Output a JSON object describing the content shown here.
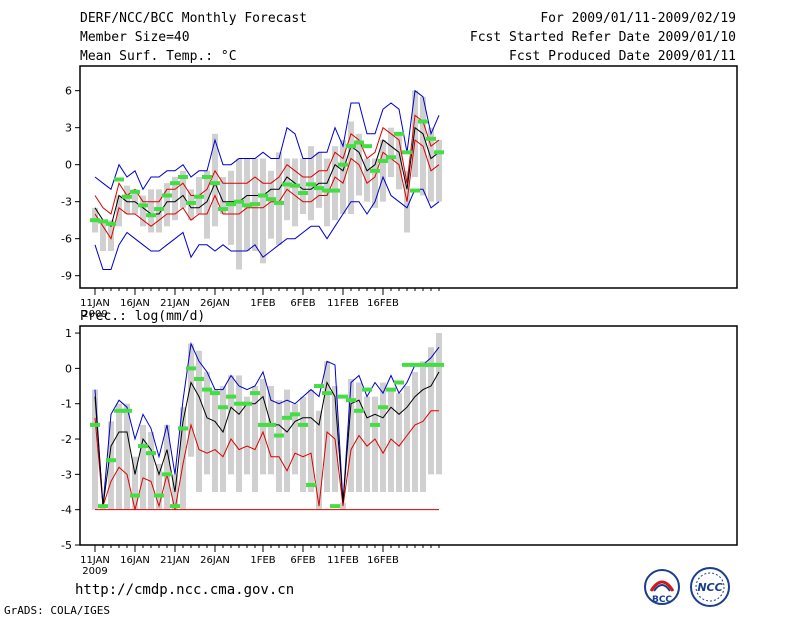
{
  "header": {
    "left": [
      "DERF/NCC/BCC Monthly Forecast",
      "Member Size=40",
      "Mean Surf. Temp.: °C"
    ],
    "right": [
      "For 2009/01/11-2009/02/19",
      "Fcst Started Refer Date 2009/01/10",
      "Fcst Produced Date 2009/01/11"
    ]
  },
  "footer": {
    "url": "http://cmdp.ncc.cma.gov.cn",
    "grads": "GrADS: COLA/IGES",
    "logo_bcc": "BCC",
    "logo_ncc": "NCC"
  },
  "colors": {
    "bar": "#d0d0d0",
    "mean": "#000000",
    "spread": "#dd0000",
    "envelope": "#0000cc",
    "observed": "#44dd44"
  },
  "chart_data": [
    {
      "type": "line",
      "title": "Mean Surf. Temp.: °C",
      "ylim": [
        -10,
        8
      ],
      "yticks": [
        6,
        3,
        0,
        -3,
        -6,
        -9
      ],
      "xticks": [
        {
          "day": 1,
          "label": "11JAN"
        },
        {
          "day": 6,
          "label": "16JAN"
        },
        {
          "day": 11,
          "label": "21JAN"
        },
        {
          "day": 16,
          "label": "26JAN"
        },
        {
          "day": 22,
          "label": "1FEB"
        },
        {
          "day": 27,
          "label": "6FEB"
        },
        {
          "day": 32,
          "label": "11FEB"
        },
        {
          "day": 37,
          "label": "16FEB"
        }
      ],
      "year_label": "2009",
      "series": [
        {
          "name": "bar_top",
          "values": [
            -3.5,
            -4.5,
            -4.5,
            -2.5,
            -1.7,
            -2.0,
            -2.5,
            -2.0,
            -2.0,
            -1.5,
            -1.0,
            -0.5,
            -2.0,
            -1.0,
            -0.5,
            2.5,
            -1.0,
            -0.5,
            0.5,
            0.5,
            0.5,
            0.5,
            -0.5,
            1.0,
            0.5,
            0.5,
            0.5,
            1.5,
            1.0,
            0.5,
            1.5,
            2.0,
            3.5,
            2.5,
            0.5,
            0.5,
            2.0,
            3.0,
            2.5,
            -0.5,
            6.0,
            5.5,
            3.0,
            2.0
          ]
        },
        {
          "name": "bar_bottom",
          "values": [
            -5.5,
            -7.0,
            -7.0,
            -5.0,
            -4.0,
            -4.0,
            -5.0,
            -5.5,
            -5.5,
            -5.0,
            -4.5,
            -3.5,
            -4.5,
            -4.0,
            -6.0,
            -5.0,
            -4.0,
            -6.5,
            -8.5,
            -7.0,
            -7.0,
            -8.0,
            -6.0,
            -6.5,
            -4.5,
            -5.0,
            -4.0,
            -4.5,
            -3.5,
            -5.0,
            -4.5,
            -4.0,
            -4.0,
            -2.5,
            -3.0,
            -3.5,
            -3.0,
            -1.0,
            -2.0,
            -5.5,
            -1.0,
            -2.5,
            -3.0,
            -3.0
          ]
        },
        {
          "name": "envelope_max",
          "values": [
            -1.0,
            -1.5,
            -2.0,
            0.0,
            -1.0,
            -0.5,
            -2.0,
            -1.0,
            -1.0,
            -0.5,
            -0.5,
            0.0,
            -1.0,
            -0.5,
            -0.5,
            2.0,
            0.0,
            0.0,
            0.5,
            0.5,
            0.5,
            1.0,
            0.5,
            0.5,
            3.0,
            2.5,
            0.5,
            0.5,
            1.0,
            1.0,
            3.0,
            1.5,
            5.0,
            5.0,
            2.5,
            2.5,
            4.5,
            5.0,
            4.5,
            1.0,
            6.0,
            5.5,
            2.5,
            4.0
          ]
        },
        {
          "name": "envelope_min",
          "values": [
            -6.5,
            -8.5,
            -8.5,
            -6.5,
            -5.5,
            -6.0,
            -6.5,
            -7.0,
            -7.0,
            -6.5,
            -6.0,
            -5.5,
            -7.5,
            -6.5,
            -6.5,
            -7.0,
            -6.5,
            -7.0,
            -7.0,
            -7.0,
            -6.5,
            -7.5,
            -7.0,
            -6.5,
            -6.0,
            -6.0,
            -5.5,
            -5.0,
            -5.0,
            -6.0,
            -5.0,
            -4.0,
            -3.0,
            -3.0,
            -4.0,
            -3.0,
            -1.0,
            -2.5,
            -3.0,
            -3.5,
            -2.0,
            -2.0,
            -3.5,
            -3.0
          ]
        },
        {
          "name": "spread_upper",
          "values": [
            -2.5,
            -3.5,
            -4.0,
            -1.5,
            -2.5,
            -2.0,
            -3.0,
            -3.0,
            -3.0,
            -2.0,
            -2.0,
            -1.5,
            -2.5,
            -2.5,
            -2.0,
            -0.5,
            -1.5,
            -1.5,
            -1.5,
            -1.5,
            -1.0,
            -1.5,
            -1.5,
            -1.0,
            0.0,
            -0.5,
            -1.0,
            -1.0,
            -0.5,
            -0.5,
            1.0,
            0.5,
            2.5,
            2.0,
            0.5,
            1.0,
            3.0,
            2.5,
            2.0,
            -1.5,
            4.0,
            3.5,
            1.5,
            2.0
          ]
        },
        {
          "name": "ensemble_mean",
          "values": [
            -3.5,
            -4.5,
            -5.0,
            -2.5,
            -3.0,
            -3.0,
            -3.5,
            -4.0,
            -4.0,
            -3.0,
            -3.0,
            -2.5,
            -3.5,
            -3.5,
            -3.0,
            -1.5,
            -3.0,
            -3.0,
            -3.0,
            -2.5,
            -2.5,
            -2.5,
            -2.0,
            -2.0,
            -1.0,
            -1.5,
            -2.0,
            -2.0,
            -1.5,
            -1.5,
            0.0,
            -0.5,
            1.5,
            1.0,
            -0.5,
            0.0,
            2.0,
            1.5,
            1.0,
            -2.0,
            3.0,
            2.5,
            0.5,
            1.0
          ]
        },
        {
          "name": "spread_lower",
          "values": [
            -4.0,
            -5.0,
            -6.0,
            -3.5,
            -4.0,
            -4.0,
            -4.5,
            -5.0,
            -4.5,
            -4.0,
            -4.0,
            -3.5,
            -4.5,
            -4.0,
            -4.0,
            -2.5,
            -4.0,
            -4.0,
            -4.0,
            -3.5,
            -3.5,
            -3.5,
            -3.0,
            -3.0,
            -2.0,
            -2.5,
            -3.0,
            -3.0,
            -2.5,
            -2.5,
            -1.0,
            -1.5,
            0.5,
            0.0,
            -1.5,
            -1.0,
            1.0,
            0.5,
            0.0,
            -3.0,
            2.0,
            1.5,
            -0.5,
            0.0
          ]
        },
        {
          "name": "observed",
          "values": [
            -4.5,
            -4.6,
            -4.8,
            -1.2,
            -2.6,
            -2.2,
            -3.3,
            -4.1,
            -3.6,
            -2.5,
            -1.5,
            -1.0,
            -3.1,
            -2.6,
            -1.0,
            -1.5,
            -3.6,
            -3.2,
            -3.0,
            -3.3,
            -3.2,
            -2.5,
            -2.8,
            -3.1,
            -1.6,
            -1.7,
            -2.3,
            -1.6,
            -1.9,
            -2.1,
            -2.1,
            0.0,
            1.5,
            1.8,
            1.5,
            -0.5,
            0.3,
            0.6,
            2.5,
            1.0,
            -2.1,
            3.5,
            2.1,
            1.0
          ]
        }
      ]
    },
    {
      "type": "line",
      "title": "Prec.: log(mm/d)",
      "ylim": [
        -5,
        1.2
      ],
      "yticks": [
        1,
        0,
        -1,
        -2,
        -3,
        -4,
        -5
      ],
      "xticks": [
        {
          "day": 1,
          "label": "11JAN"
        },
        {
          "day": 6,
          "label": "16JAN"
        },
        {
          "day": 11,
          "label": "21JAN"
        },
        {
          "day": 16,
          "label": "26JAN"
        },
        {
          "day": 22,
          "label": "1FEB"
        },
        {
          "day": 27,
          "label": "6FEB"
        },
        {
          "day": 32,
          "label": "11FEB"
        },
        {
          "day": 37,
          "label": "16FEB"
        }
      ],
      "year_label": "2009",
      "series": [
        {
          "name": "bar_top",
          "values": [
            -0.6,
            -3.9,
            -1.5,
            -1.0,
            -1.0,
            -2.5,
            -1.6,
            -1.8,
            -2.7,
            -1.6,
            -3.0,
            -1.1,
            0.7,
            0.5,
            -0.1,
            -0.6,
            -0.5,
            -0.2,
            -0.2,
            -0.8,
            -0.5,
            -0.3,
            -0.5,
            -0.9,
            -0.6,
            -1.0,
            -0.8,
            -0.6,
            -1.2,
            0.2,
            -0.5,
            -3.8,
            -0.3,
            -0.4,
            -0.8,
            -0.8,
            -0.4,
            -0.6,
            -0.7,
            -0.5,
            -0.1,
            0.2,
            0.6,
            1.0
          ]
        },
        {
          "name": "bar_bottom",
          "values": [
            -4.0,
            -4.0,
            -4.0,
            -4.0,
            -4.0,
            -4.0,
            -4.0,
            -4.0,
            -4.0,
            -4.0,
            -4.0,
            -4.0,
            -2.5,
            -3.5,
            -3.0,
            -3.5,
            -3.5,
            -3.0,
            -3.5,
            -3.0,
            -3.5,
            -3.0,
            -3.0,
            -3.5,
            -3.5,
            -3.0,
            -3.5,
            -3.5,
            -4.0,
            -3.5,
            -3.5,
            -4.0,
            -3.5,
            -3.5,
            -3.5,
            -3.5,
            -3.5,
            -3.5,
            -3.5,
            -3.5,
            -3.5,
            -3.5,
            -3.0,
            -3.0
          ]
        },
        {
          "name": "envelope_max",
          "values": [
            -0.6,
            -3.9,
            -1.3,
            -0.9,
            -1.1,
            -2.0,
            -1.3,
            -1.7,
            -2.5,
            -1.6,
            -3.0,
            -0.9,
            0.7,
            0.2,
            -0.1,
            -0.6,
            -0.6,
            -0.2,
            -0.5,
            -0.6,
            -0.5,
            -0.1,
            -0.9,
            -1.0,
            -0.9,
            -1.0,
            -0.8,
            -0.6,
            -0.8,
            0.2,
            0.1,
            -3.8,
            -0.4,
            -0.2,
            -0.8,
            -0.4,
            -0.7,
            -0.2,
            -0.7,
            -0.4,
            0.1,
            0.1,
            0.3,
            0.6
          ]
        },
        {
          "name": "ensemble_mean",
          "values": [
            -0.8,
            -3.9,
            -2.2,
            -1.8,
            -1.8,
            -3.0,
            -2.0,
            -2.3,
            -3.0,
            -2.3,
            -3.5,
            -1.5,
            -0.4,
            -0.8,
            -1.4,
            -1.5,
            -1.8,
            -1.1,
            -1.3,
            -1.0,
            -1.0,
            -0.8,
            -1.6,
            -1.6,
            -1.8,
            -1.5,
            -1.4,
            -1.4,
            -1.6,
            -0.4,
            -0.8,
            -3.8,
            -1.0,
            -0.9,
            -1.4,
            -1.3,
            -1.4,
            -1.1,
            -1.3,
            -1.1,
            -0.8,
            -0.6,
            -0.5,
            -0.1
          ]
        },
        {
          "name": "spread_lower",
          "values": [
            -1.4,
            -3.9,
            -3.2,
            -2.8,
            -3.0,
            -4.0,
            -3.1,
            -3.2,
            -3.9,
            -3.0,
            -4.0,
            -2.7,
            -1.6,
            -2.3,
            -2.4,
            -2.3,
            -2.5,
            -2.0,
            -2.3,
            -2.2,
            -2.3,
            -1.8,
            -2.5,
            -2.5,
            -2.9,
            -2.4,
            -2.5,
            -2.4,
            -3.9,
            -1.8,
            -2.0,
            -3.9,
            -2.3,
            -1.9,
            -2.2,
            -2.0,
            -2.4,
            -2.0,
            -2.2,
            -1.9,
            -1.6,
            -1.5,
            -1.2,
            -1.2
          ]
        },
        {
          "name": "observed",
          "values": [
            -1.6,
            -3.9,
            -2.6,
            -1.2,
            -1.2,
            -3.6,
            -2.2,
            -2.4,
            -3.6,
            -3.0,
            -3.9,
            -1.7,
            0.0,
            -0.3,
            -0.6,
            -0.7,
            -1.1,
            -0.8,
            -1.0,
            -1.0,
            -0.7,
            -1.6,
            -1.6,
            -1.9,
            -1.4,
            -1.3,
            -1.6,
            -3.3,
            -0.5,
            -0.7,
            -3.9,
            -0.8,
            -0.9,
            -1.2,
            -0.6,
            -1.6,
            -1.1,
            -0.6,
            -0.4,
            0.1,
            0.1,
            0.1,
            0.1,
            0.1
          ]
        }
      ]
    }
  ]
}
